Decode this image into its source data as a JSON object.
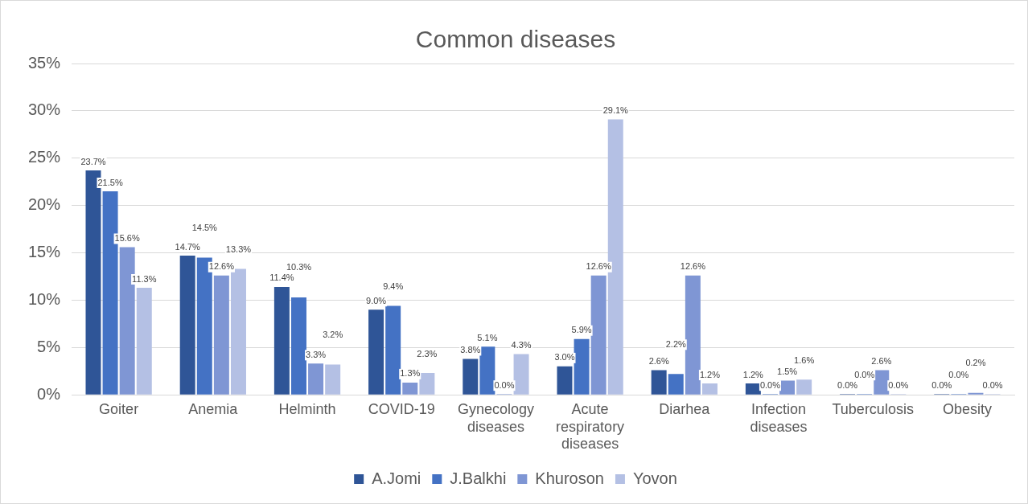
{
  "chart_data": {
    "type": "bar",
    "title": "Common diseases",
    "categories": [
      "Goiter",
      "Anemia",
      "Helminth",
      "COVID-19",
      "Gynecology diseases",
      "Acute respiratory diseases",
      "Diarhea",
      "Infection diseases",
      "Tuberculosis",
      "Obesity"
    ],
    "series": [
      {
        "name": "A.Jomi",
        "color": "#2f5597",
        "values": [
          23.7,
          14.7,
          11.4,
          9.0,
          3.8,
          3.0,
          2.6,
          1.2,
          0.0,
          0.0
        ],
        "value_labels": [
          "23.7%",
          "14.7%",
          "11.4%",
          "9.0%",
          "3.8%",
          "3.0%",
          "2.6%",
          "1.2%",
          "0.0%",
          "0.0%"
        ]
      },
      {
        "name": "J.Balkhi",
        "color": "#4472c4",
        "values": [
          21.5,
          14.5,
          10.3,
          9.4,
          5.1,
          5.9,
          2.2,
          0.0,
          0.0,
          0.0
        ],
        "value_labels": [
          "21.5%",
          "14.5%",
          "10.3%",
          "9.4%",
          "5.1%",
          "5.9%",
          "2.2%",
          "0.0%",
          "0.0%",
          "0.0%"
        ]
      },
      {
        "name": "Khuroson",
        "color": "#7f96d4",
        "values": [
          15.6,
          12.6,
          3.3,
          1.3,
          0.0,
          12.6,
          12.6,
          1.5,
          2.6,
          0.2
        ],
        "value_labels": [
          "15.6%",
          "12.6%",
          "3.3%",
          "1.3%",
          "0.0%",
          "12.6%",
          "12.6%",
          "1.5%",
          "2.6%",
          "0.2%"
        ]
      },
      {
        "name": "Yovon",
        "color": "#b4c0e4",
        "values": [
          11.3,
          13.3,
          3.2,
          2.3,
          4.3,
          29.1,
          1.2,
          1.6,
          0.0,
          0.0
        ],
        "value_labels": [
          "11.3%",
          "13.3%",
          "3.2%",
          "2.3%",
          "4.3%",
          "29.1%",
          "1.2%",
          "1.6%",
          "0.0%",
          "0.0%"
        ]
      }
    ],
    "ylim": [
      0,
      35
    ],
    "yticks": [
      {
        "value": 0,
        "label": "0%"
      },
      {
        "value": 5,
        "label": "5%"
      },
      {
        "value": 10,
        "label": "10%"
      },
      {
        "value": 15,
        "label": "15%"
      },
      {
        "value": 20,
        "label": "20%"
      },
      {
        "value": 25,
        "label": "25%"
      },
      {
        "value": 30,
        "label": "30%"
      },
      {
        "value": 35,
        "label": "35%"
      }
    ],
    "grid": "y",
    "legend": "bottom"
  }
}
